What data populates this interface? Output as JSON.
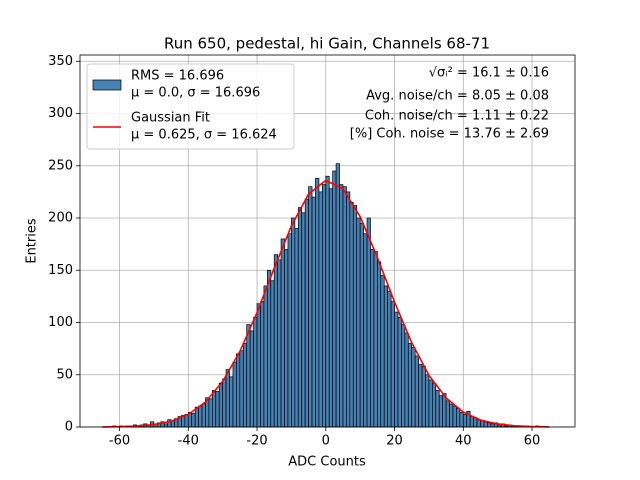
{
  "chart_data": {
    "type": "histogram",
    "title": "Run 650, pedestal, hi Gain, Channels 68-71",
    "xlabel": "ADC Counts",
    "ylabel": "Entries",
    "xlim": [
      -71.5,
      72.5
    ],
    "ylim": [
      0,
      356
    ],
    "xticks": [
      -60,
      -40,
      -20,
      0,
      20,
      40,
      60
    ],
    "yticks": [
      0,
      50,
      100,
      150,
      200,
      250,
      300,
      350
    ],
    "grid": true,
    "legend": "upper left",
    "bins": [
      -64,
      -63,
      -62,
      -61,
      -60,
      -59,
      -58,
      -57,
      -56,
      -55,
      -54,
      -53,
      -52,
      -51,
      -50,
      -49,
      -48,
      -47,
      -46,
      -45,
      -44,
      -43,
      -42,
      -41,
      -40,
      -39,
      -38,
      -37,
      -36,
      -35,
      -34,
      -33,
      -32,
      -31,
      -30,
      -29,
      -28,
      -27,
      -26,
      -25,
      -24,
      -23,
      -22,
      -21,
      -20,
      -19,
      -18,
      -17,
      -16,
      -15,
      -14,
      -13,
      -12,
      -11,
      -10,
      -9,
      -8,
      -7,
      -6,
      -5,
      -4,
      -3,
      -2,
      -1,
      0,
      1,
      2,
      3,
      4,
      5,
      6,
      7,
      8,
      9,
      10,
      11,
      12,
      13,
      14,
      15,
      16,
      17,
      18,
      19,
      20,
      21,
      22,
      23,
      24,
      25,
      26,
      27,
      28,
      29,
      30,
      31,
      32,
      33,
      34,
      35,
      36,
      37,
      38,
      39,
      40,
      41,
      42,
      43,
      44,
      45,
      46,
      47,
      48,
      49,
      50,
      51,
      52,
      53,
      54,
      55,
      56,
      57,
      58,
      59,
      60,
      61,
      62,
      63,
      64,
      65,
      66
    ],
    "series": [
      {
        "name": "RMS = 16.696",
        "label2": "μ = 0.0, σ = 16.696",
        "color": "#4682b4",
        "edgecolor": "#000000",
        "values": [
          0,
          0,
          1,
          0,
          1,
          0,
          1,
          1,
          2,
          1,
          2,
          3,
          2,
          5,
          3,
          4,
          5,
          3,
          7,
          6,
          8,
          10,
          11,
          12,
          14,
          13,
          19,
          20,
          22,
          28,
          27,
          35,
          34,
          42,
          46,
          55,
          48,
          62,
          70,
          73,
          80,
          98,
          92,
          105,
          118,
          120,
          135,
          150,
          140,
          165,
          160,
          180,
          170,
          185,
          200,
          190,
          210,
          205,
          218,
          230,
          220,
          238,
          225,
          232,
          240,
          228,
          245,
          252,
          232,
          230,
          225,
          215,
          212,
          200,
          195,
          185,
          200,
          170,
          168,
          158,
          145,
          135,
          130,
          120,
          110,
          105,
          98,
          90,
          80,
          76,
          68,
          60,
          58,
          50,
          45,
          42,
          35,
          30,
          32,
          25,
          22,
          20,
          18,
          14,
          12,
          15,
          10,
          9,
          7,
          6,
          5,
          4,
          3,
          4,
          2,
          3,
          1,
          2,
          1,
          1,
          1,
          0,
          1,
          0,
          0,
          1,
          0,
          0,
          0,
          0
        ]
      },
      {
        "type": "line",
        "name": "Gaussian Fit",
        "label2": "μ = 0.625, σ = 16.624",
        "color": "#ff0000",
        "x": [
          -65,
          -60,
          -55,
          -50,
          -45,
          -40,
          -35,
          -30,
          -25,
          -20,
          -15,
          -10,
          -5,
          0,
          5,
          10,
          15,
          20,
          25,
          30,
          35,
          40,
          45,
          50,
          55,
          60,
          65
        ],
        "values": [
          0.1,
          0.3,
          0.9,
          2.3,
          5.5,
          12.0,
          23.9,
          43.5,
          72.2,
          109.5,
          152,
          192.4,
          222.9,
          235.9,
          228,
          201.3,
          162.4,
          119.7,
          80.7,
          49.6,
          27.9,
          14.3,
          6.7,
          2.9,
          1.1,
          0.4,
          0.1
        ]
      }
    ],
    "annotations": [
      "√σᵢ² = 16.1 ± 0.16",
      "Avg. noise/ch = 8.05 ± 0.08",
      "Coh. noise/ch = 1.11 ± 0.22",
      "[%] Coh. noise = 13.76 ± 2.69"
    ]
  }
}
